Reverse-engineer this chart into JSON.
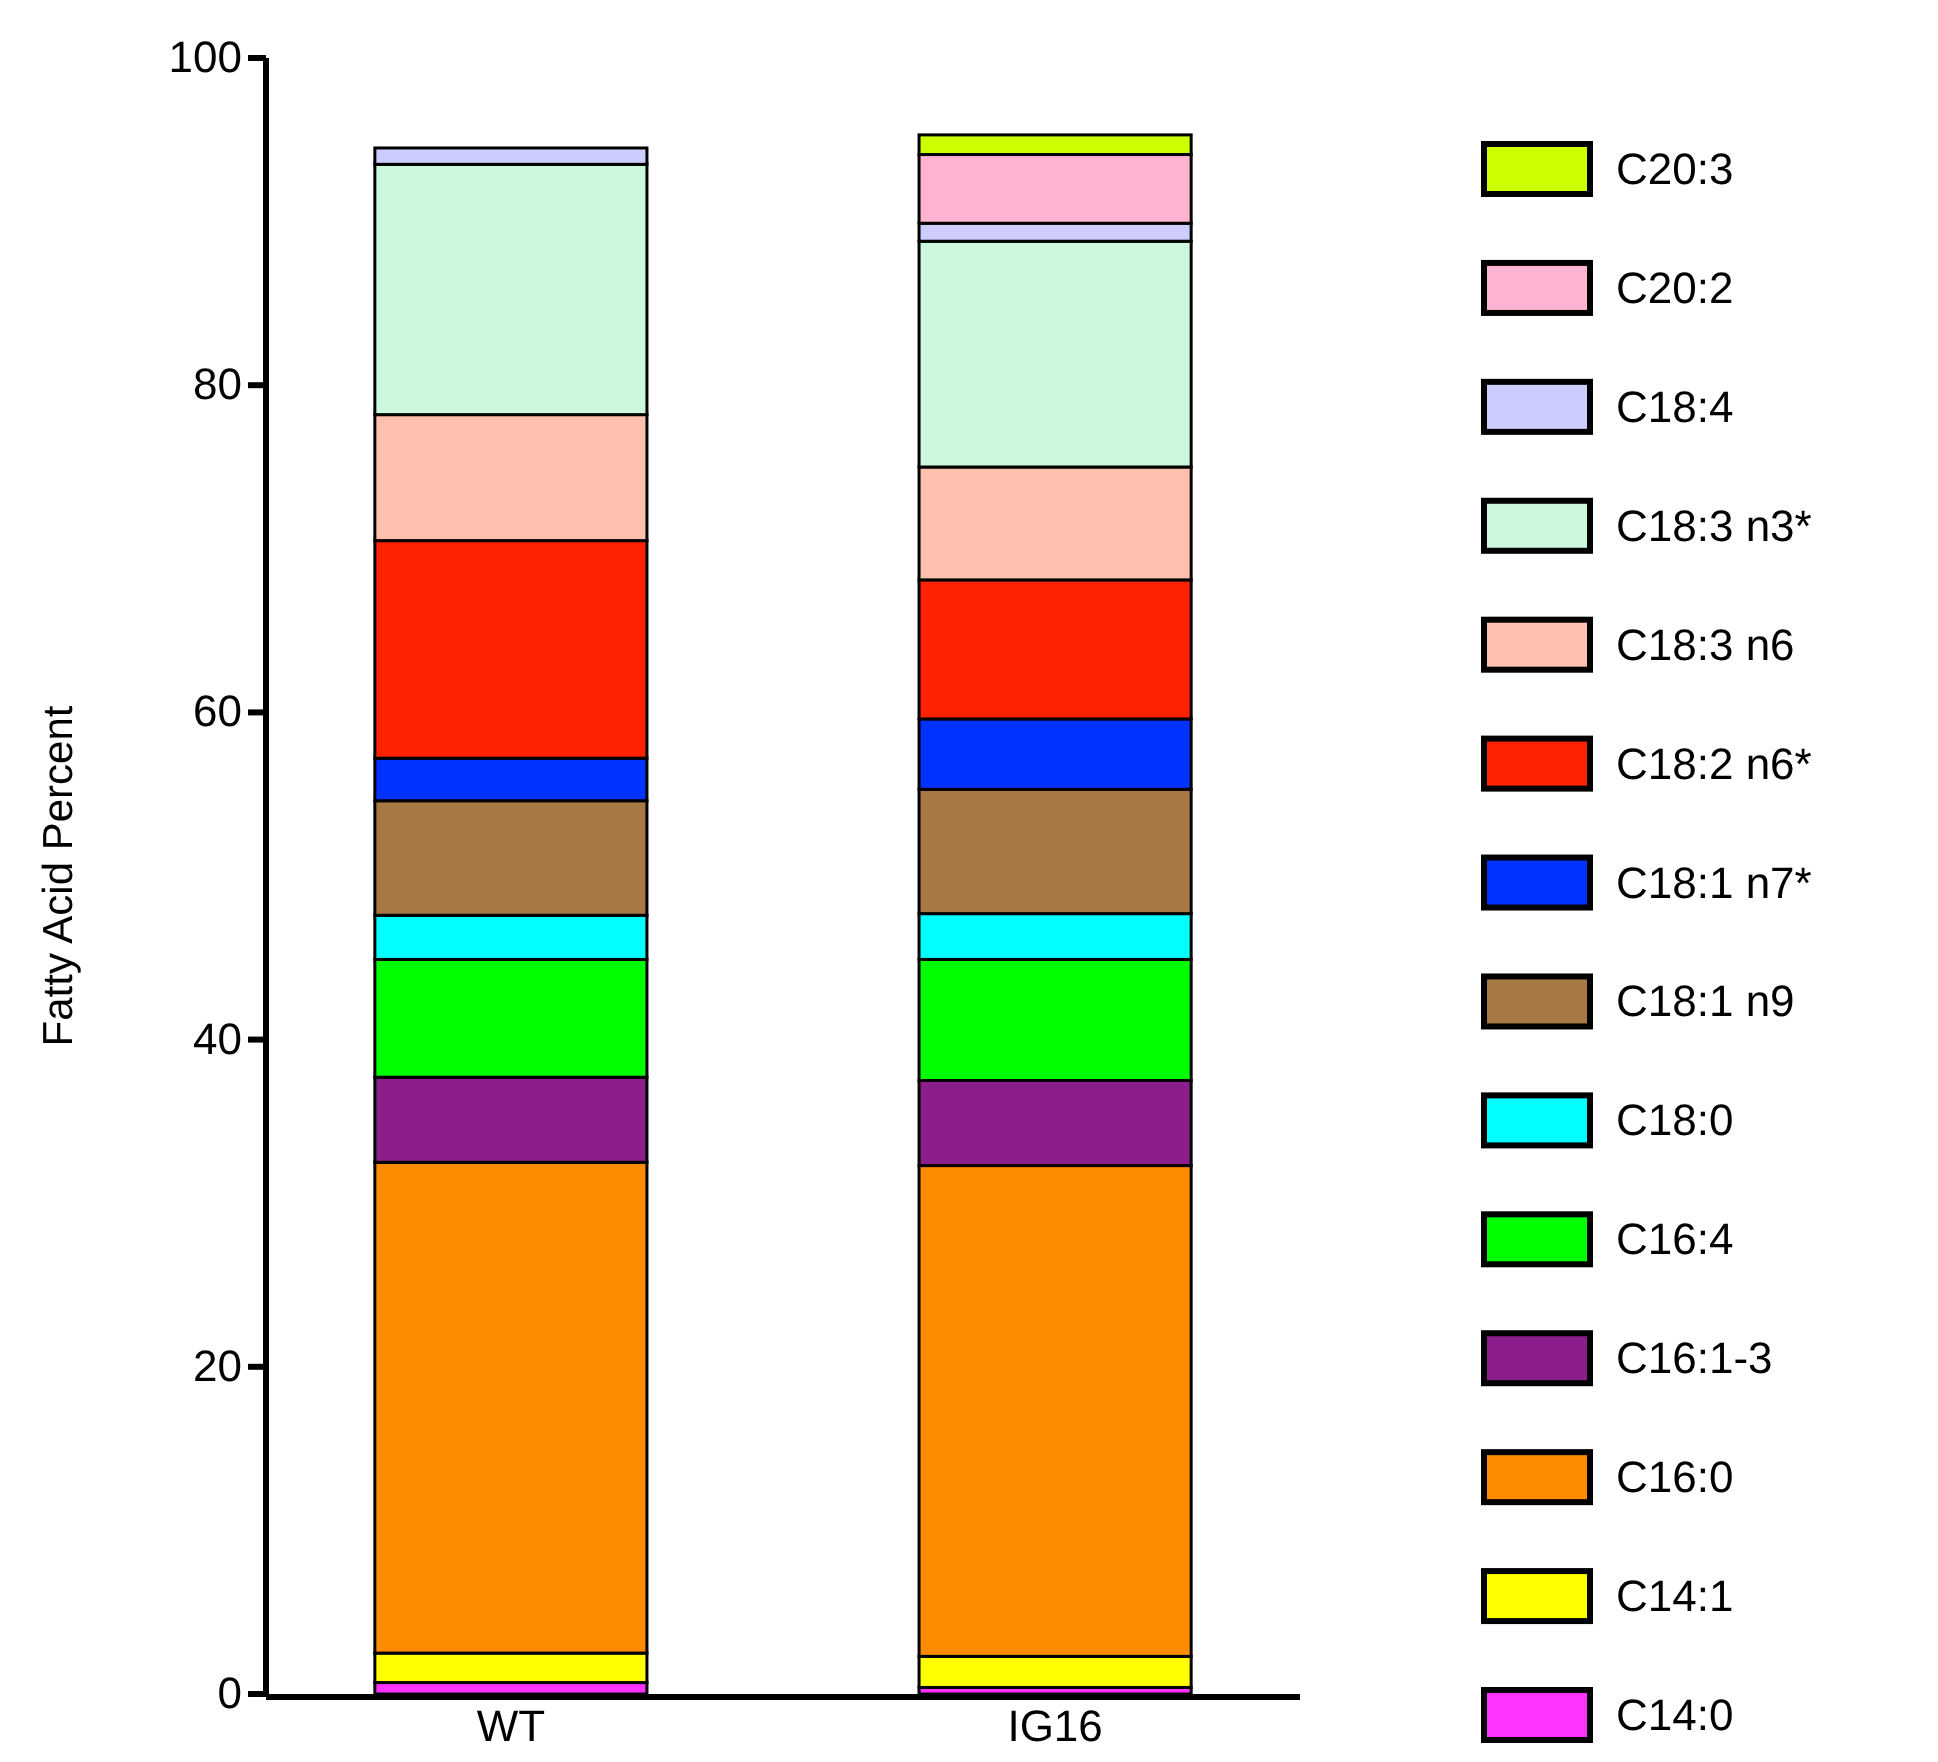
{
  "chart_data": {
    "type": "bar",
    "stacked": true,
    "ylabel": "Fatty Acid Percent",
    "categories": [
      "WT",
      "IG16"
    ],
    "ylim": [
      0,
      100
    ],
    "yticks": [
      0,
      20,
      40,
      60,
      80,
      100
    ],
    "grid": false,
    "legend": "right",
    "series": [
      {
        "name": "C14:0",
        "color": "#ff33ff",
        "values": [
          0.7,
          0.4
        ]
      },
      {
        "name": "C14:1",
        "color": "#ffff00",
        "values": [
          1.8,
          1.9
        ]
      },
      {
        "name": "C16:0",
        "color": "#ff8c00",
        "values": [
          30,
          30
        ]
      },
      {
        "name": "C16:1-3",
        "color": "#8b1e8b",
        "values": [
          5.2,
          5.2
        ]
      },
      {
        "name": "C16:4",
        "color": "#00ff00",
        "values": [
          7.2,
          7.4
        ]
      },
      {
        "name": "C18:0",
        "color": "#00ffff",
        "values": [
          2.7,
          2.8
        ]
      },
      {
        "name": "C18:1 n9",
        "color": "#a87844",
        "values": [
          7,
          7.6
        ]
      },
      {
        "name": "C18:1 n7*",
        "color": "#0033ff",
        "values": [
          2.6,
          4.3
        ]
      },
      {
        "name": "C18:2 n6*",
        "color": "#ff2200",
        "values": [
          13.3,
          8.5
        ]
      },
      {
        "name": "C18:3 n6",
        "color": "#ffc0ad",
        "values": [
          7.7,
          6.9
        ]
      },
      {
        "name": "C18:3 n3*",
        "color": "#ccf9dd",
        "values": [
          15.3,
          13.8
        ]
      },
      {
        "name": "C18:4",
        "color": "#ccccff",
        "values": [
          1,
          1.1
        ]
      },
      {
        "name": "C20:2",
        "color": "#ffb3d1",
        "values": [
          0,
          4.2
        ]
      },
      {
        "name": "C20:3",
        "color": "#ccff00",
        "values": [
          0,
          1.2
        ]
      }
    ]
  }
}
